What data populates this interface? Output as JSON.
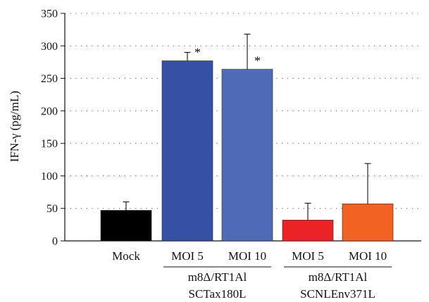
{
  "chart_data": {
    "type": "bar",
    "title": "",
    "ylabel": "IFN-γ (pg/mL)",
    "xlabel": "",
    "ylim": [
      0,
      350
    ],
    "yticks": [
      0,
      50,
      100,
      150,
      200,
      250,
      300,
      350
    ],
    "grid": "horizontal dotted",
    "categories": [
      "Mock",
      "MOI 5",
      "MOI 10",
      "MOI 5",
      "MOI 10"
    ],
    "values": [
      47,
      277,
      264,
      32,
      57
    ],
    "errors": [
      13,
      13,
      54,
      26,
      62
    ],
    "significant": [
      false,
      true,
      true,
      false,
      false
    ],
    "significance_marker": "*",
    "colors": [
      "#000000",
      "#3650a6",
      "#4f6bb8",
      "#ec2227",
      "#f26223"
    ],
    "groups": [
      {
        "label_line1": "m8Δ/RT1Al",
        "label_line2": "SCTax180L",
        "categories": [
          1,
          2
        ]
      },
      {
        "label_line1": "m8Δ/RT1Al",
        "label_line2": "SCNLEnv371L",
        "categories": [
          3,
          4
        ]
      }
    ]
  }
}
